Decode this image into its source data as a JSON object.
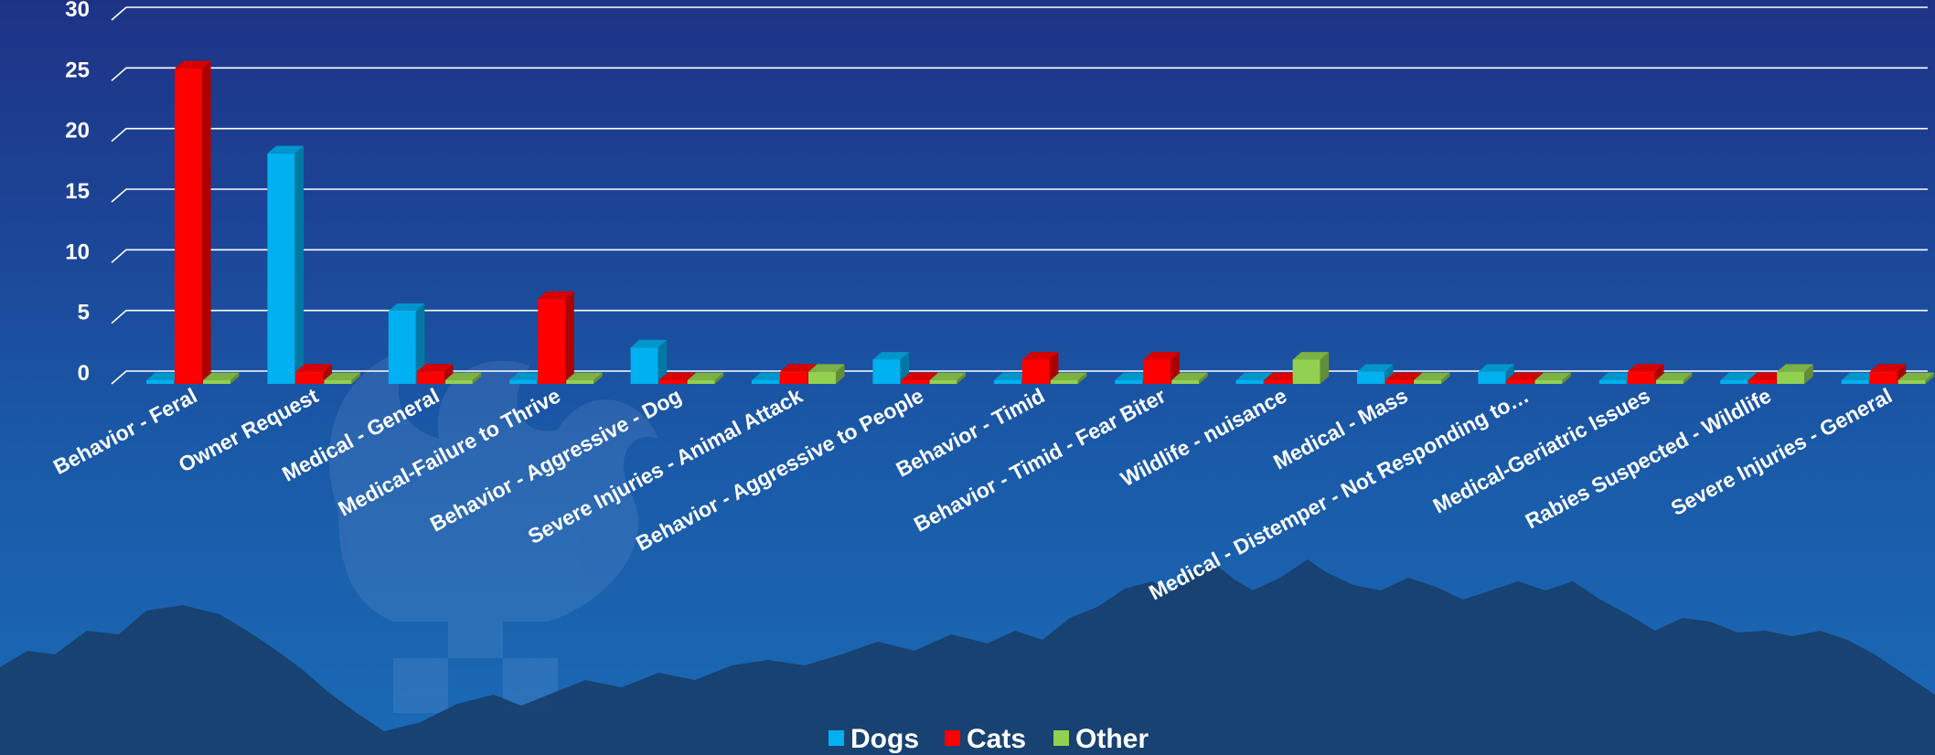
{
  "chart_data": {
    "type": "bar",
    "title": "",
    "xlabel": "",
    "ylabel": "",
    "ylim": [
      0,
      30
    ],
    "yticks": [
      0,
      5,
      10,
      15,
      20,
      25,
      30
    ],
    "grid": true,
    "legend_position": "bottom",
    "categories": [
      "Behavior - Feral",
      "Owner Request",
      "Medical - General",
      "Medical-Failure to Thrive",
      "Behavior - Aggressive - Dog",
      "Severe Injuries - Animal Attack",
      "Behavior - Aggressive to People",
      "Behavior - Timid",
      "Behavior - Timid - Fear Biter",
      "Wildlife - nuisance",
      "Medical - Mass",
      "Medical - Distemper - Not Responding to…",
      "Medical-Geriatric Issues",
      "Rabies Suspected - Wildlife",
      "Severe Injuries - General"
    ],
    "series": [
      {
        "name": "Dogs",
        "color": "#00b0f0",
        "values": [
          0,
          19,
          6,
          0,
          3,
          0,
          2,
          0,
          0,
          0,
          1,
          1,
          0,
          0,
          0
        ]
      },
      {
        "name": "Cats",
        "color": "#ff0000",
        "values": [
          26,
          1,
          1,
          7,
          0,
          1,
          0,
          2,
          2,
          0,
          0,
          0,
          1,
          0,
          1
        ]
      },
      {
        "name": "Other",
        "color": "#92d050",
        "values": [
          0,
          0,
          0,
          0,
          0,
          1,
          0,
          0,
          0,
          2,
          0,
          0,
          0,
          1,
          0
        ]
      }
    ]
  }
}
